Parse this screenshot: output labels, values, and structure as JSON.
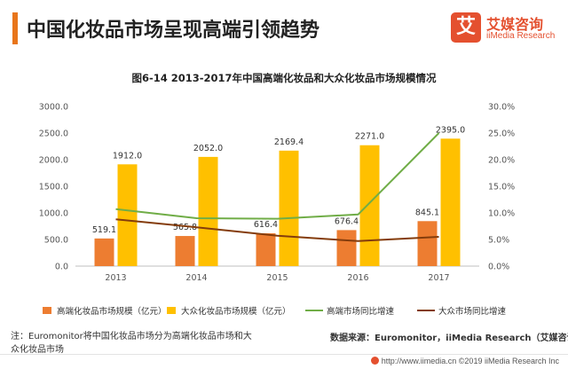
{
  "header": {
    "title": "中国化妆品市场呈现高端引领趋势",
    "logo_mark": "艾",
    "logo_name": "艾媒咨询",
    "logo_en": "iiMedia Research"
  },
  "chart_data": {
    "type": "bar",
    "title": "图6-14 2013-2017年中国高端化妆品和大众化妆品市场规模情况",
    "categories": [
      "2013",
      "2014",
      "2015",
      "2016",
      "2017"
    ],
    "y_left": {
      "ticks": [
        "0.0",
        "500.0",
        "1000.0",
        "1500.0",
        "2000.0",
        "2500.0",
        "3000.0"
      ],
      "range": [
        0,
        3000
      ]
    },
    "y_right": {
      "ticks": [
        "0.0%",
        "5.0%",
        "10.0%",
        "15.0%",
        "20.0%",
        "25.0%",
        "30.0%"
      ],
      "range": [
        0,
        30
      ]
    },
    "series": [
      {
        "name": "高端化妆品市场规模（亿元）",
        "type": "bar",
        "axis": "left",
        "color": "#ed7d31",
        "values": [
          519.1,
          565.8,
          616.4,
          676.4,
          845.1
        ],
        "labels": [
          "519.1",
          "565.8",
          "616.4",
          "676.4",
          "845.1"
        ]
      },
      {
        "name": "大众化妆品市场规模（亿元）",
        "type": "bar",
        "axis": "left",
        "color": "#ffc000",
        "values": [
          1912.0,
          2052.0,
          2169.4,
          2271.0,
          2395.0
        ],
        "labels": [
          "1912.0",
          "2052.0",
          "2169.4",
          "2271.0",
          "2395.0"
        ]
      },
      {
        "name": "高端市场同比增速",
        "type": "line",
        "axis": "right",
        "color": "#70ad47",
        "values": [
          10.7,
          9.0,
          8.9,
          9.7,
          25.0
        ]
      },
      {
        "name": "大众市场同比增速",
        "type": "line",
        "axis": "right",
        "color": "#843c0c",
        "values": [
          8.8,
          7.3,
          5.7,
          4.7,
          5.5
        ]
      }
    ],
    "legend_position": "bottom",
    "grid": false
  },
  "note": "注：Euromonitor将中国化妆品市场分为高端化妆品市场和大众化妆品市场",
  "source": "数据来源：Euromonitor，iiMedia Research（艾媒咨询）",
  "footer": "http://www.iimedia.cn   ©2019  iiMedia Research Inc"
}
